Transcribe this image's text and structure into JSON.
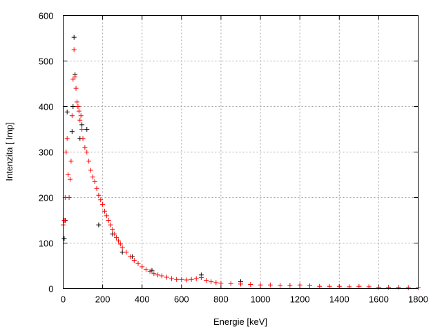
{
  "chart_data": {
    "type": "scatter",
    "title": "",
    "xlabel": "Energie [keV]",
    "ylabel": "Intenzita [ Imp]",
    "xlim": [
      0,
      1800
    ],
    "ylim": [
      0,
      600
    ],
    "xticks": [
      0,
      200,
      400,
      600,
      800,
      1000,
      1200,
      1400,
      1600,
      1800
    ],
    "yticks": [
      0,
      100,
      200,
      300,
      400,
      500,
      600
    ],
    "grid": true,
    "legend": "none",
    "marker": "+",
    "series": [
      {
        "color": "#000000",
        "x": [
          5,
          10,
          20,
          45,
          50,
          55,
          60,
          85,
          95,
          120,
          180,
          250,
          300,
          350,
          450,
          700,
          900
        ],
        "y": [
          110,
          150,
          388,
          345,
          400,
          552,
          470,
          330,
          360,
          350,
          140,
          120,
          80,
          70,
          40,
          30,
          15
        ]
      },
      {
        "color": "#ff0000",
        "x": [
          0,
          5,
          10,
          15,
          20,
          25,
          30,
          35,
          40,
          45,
          50,
          55,
          60,
          65,
          70,
          75,
          80,
          85,
          90,
          95,
          100,
          110,
          120,
          130,
          140,
          150,
          160,
          170,
          180,
          190,
          200,
          210,
          220,
          230,
          240,
          250,
          260,
          270,
          280,
          290,
          300,
          320,
          340,
          360,
          380,
          400,
          420,
          440,
          460,
          480,
          500,
          525,
          550,
          575,
          600,
          625,
          650,
          675,
          700,
          725,
          750,
          775,
          800,
          850,
          900,
          950,
          1000,
          1050,
          1100,
          1150,
          1200,
          1250,
          1300,
          1350,
          1400,
          1450,
          1500,
          1550,
          1600,
          1650,
          1700,
          1750,
          1800
        ],
        "y": [
          140,
          150,
          200,
          300,
          330,
          250,
          200,
          240,
          280,
          380,
          460,
          525,
          465,
          440,
          410,
          400,
          390,
          370,
          380,
          350,
          330,
          310,
          300,
          280,
          260,
          245,
          235,
          220,
          205,
          195,
          185,
          170,
          160,
          150,
          140,
          130,
          120,
          112,
          105,
          98,
          90,
          80,
          70,
          62,
          55,
          48,
          42,
          38,
          33,
          30,
          28,
          25,
          22,
          20,
          20,
          19,
          20,
          22,
          24,
          18,
          15,
          13,
          12,
          11,
          10,
          9,
          8,
          8,
          7,
          7,
          8,
          6,
          5,
          5,
          5,
          4,
          5,
          4,
          3,
          3,
          3,
          2,
          2
        ]
      }
    ]
  }
}
